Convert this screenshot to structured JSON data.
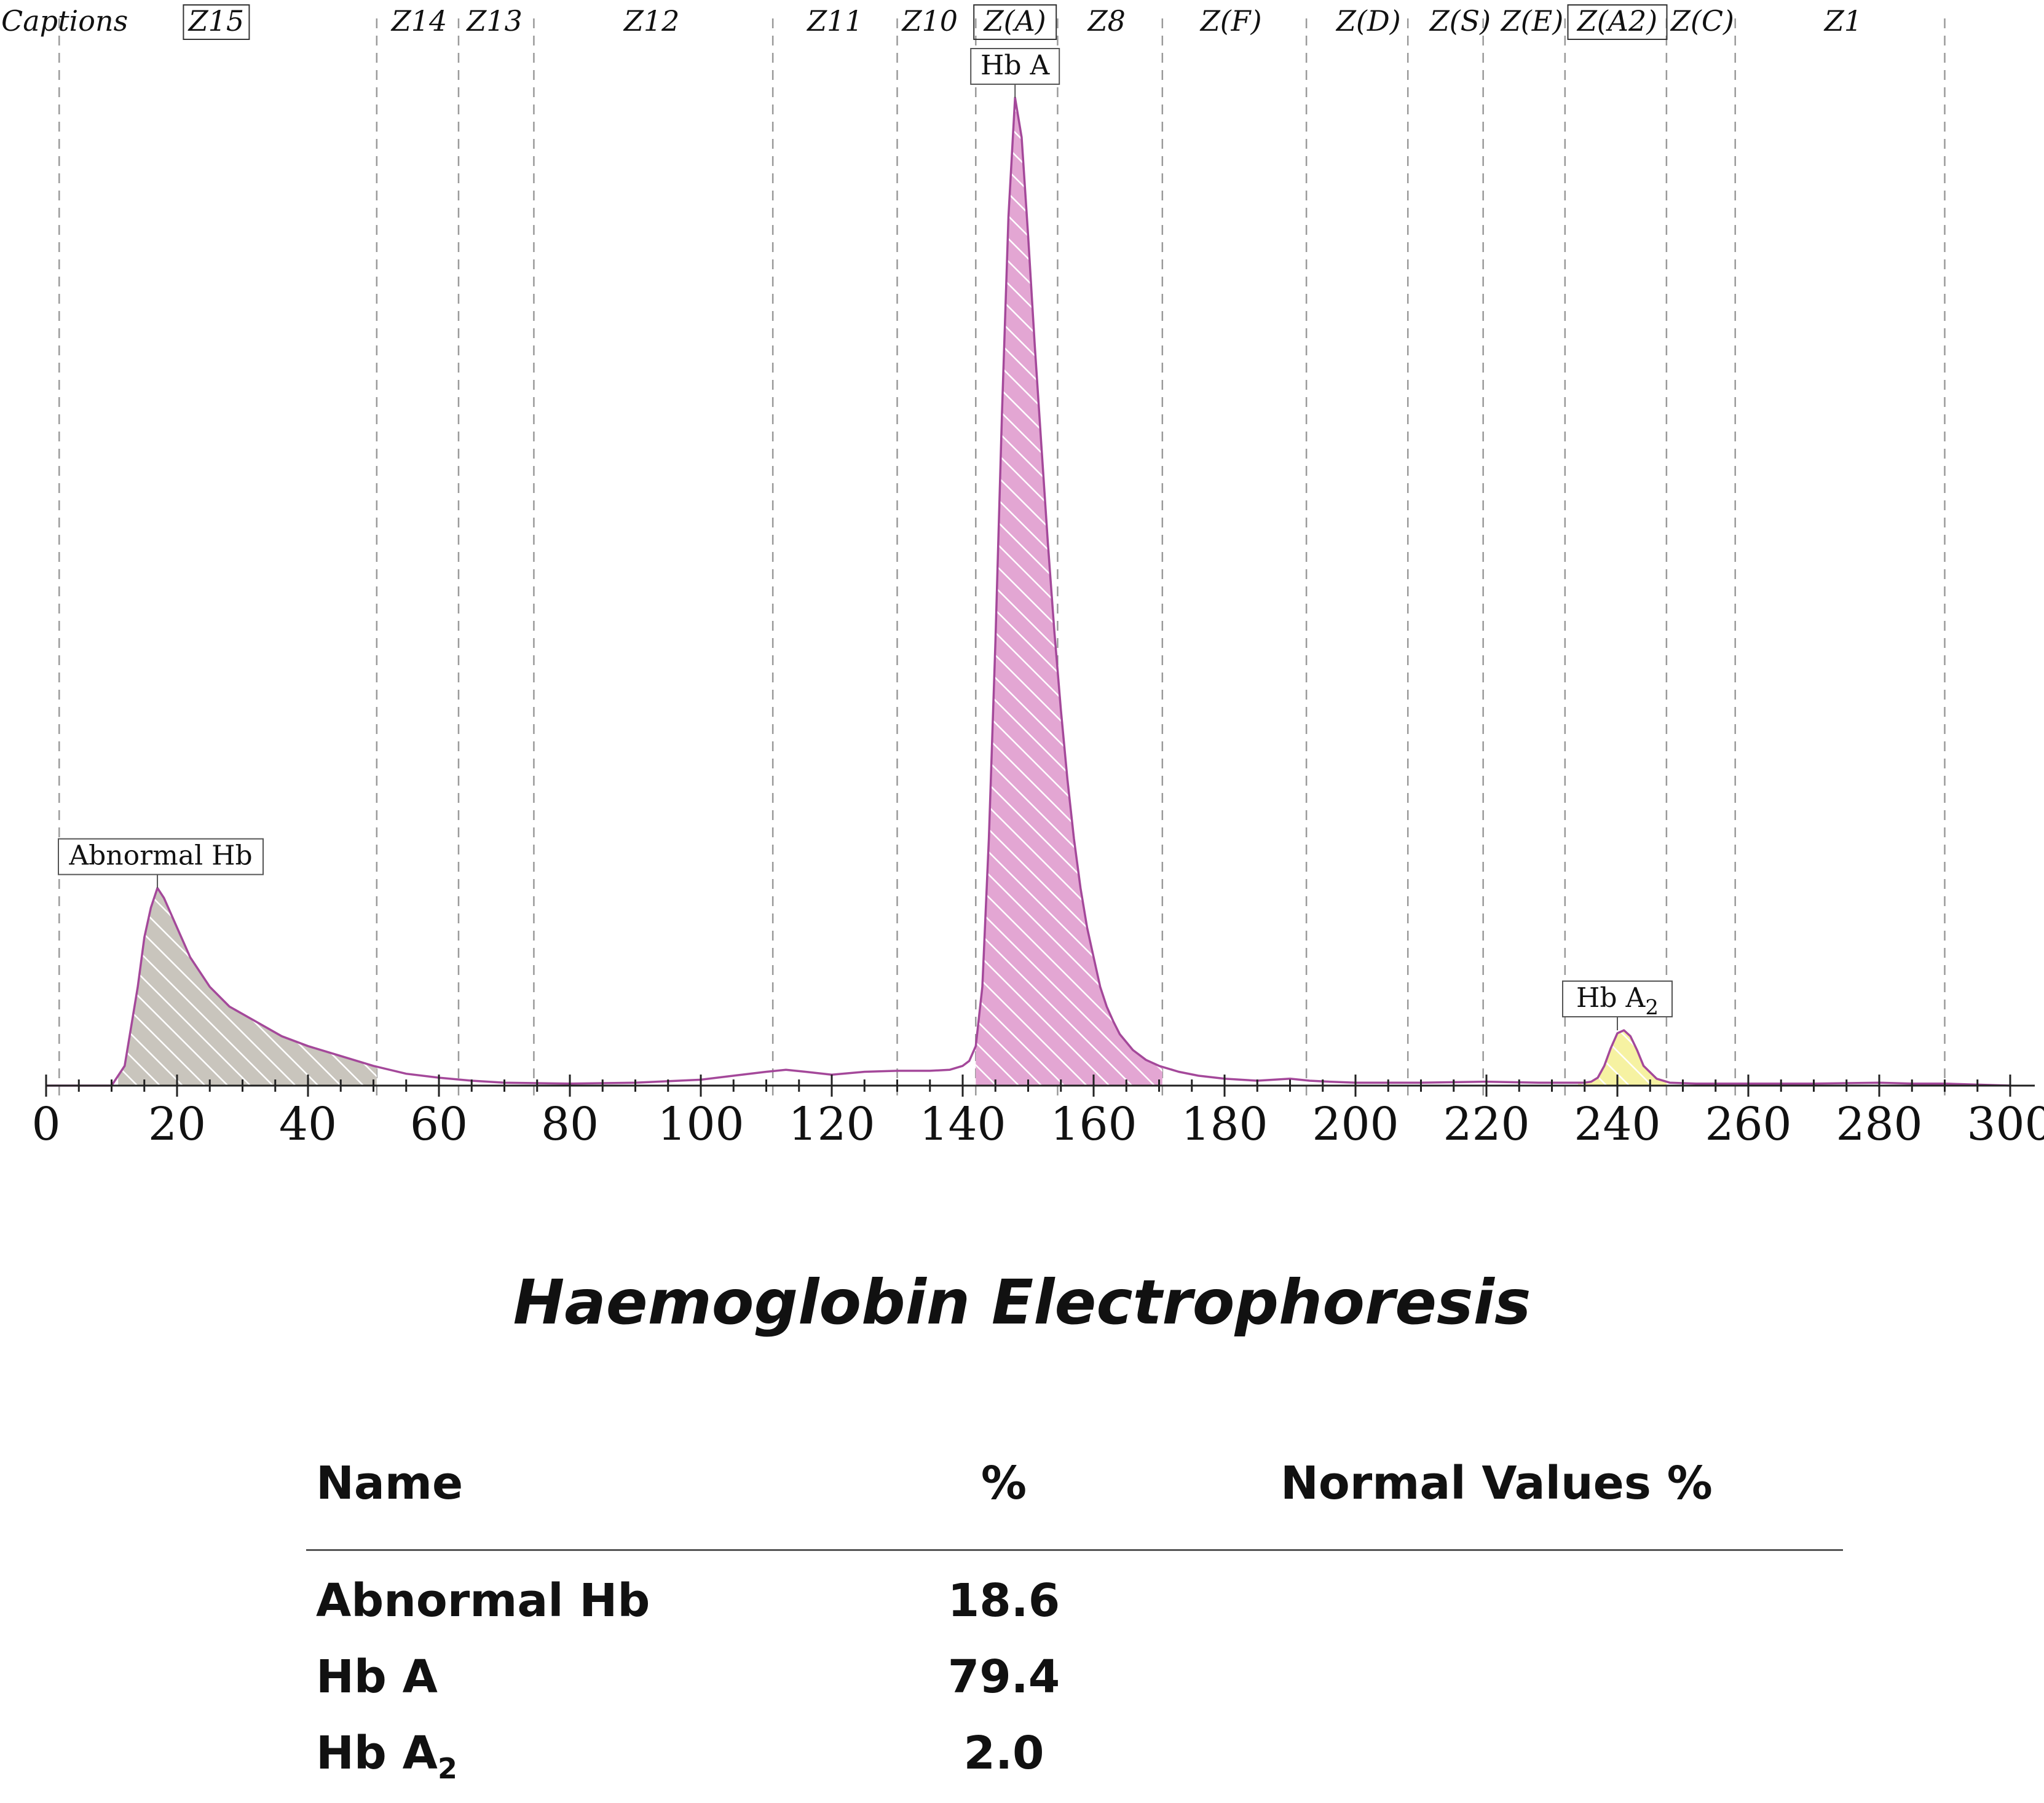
{
  "chart_data": {
    "type": "area",
    "title": "Haemoglobin Electrophoresis",
    "xlabel": "",
    "ylabel": "",
    "xlim": [
      0,
      300
    ],
    "ylim": [
      0,
      100
    ],
    "x_ticks": [
      0,
      20,
      40,
      60,
      80,
      100,
      120,
      140,
      160,
      180,
      200,
      220,
      240,
      260,
      280,
      300
    ],
    "caption_label": "Captions",
    "zones": [
      {
        "label": "Z15",
        "center": 26,
        "boxed": true
      },
      {
        "label": "Z14",
        "center": 57,
        "boxed": false
      },
      {
        "label": "Z13",
        "center": 68.5,
        "boxed": false
      },
      {
        "label": "Z12",
        "center": 92.5,
        "boxed": false
      },
      {
        "label": "Z11",
        "center": 120.5,
        "boxed": false
      },
      {
        "label": "Z10",
        "center": 135,
        "boxed": false
      },
      {
        "label": "Z(A)",
        "center": 148,
        "boxed": true
      },
      {
        "label": "Z8",
        "center": 162,
        "boxed": false
      },
      {
        "label": "Z(F)",
        "center": 181,
        "boxed": false
      },
      {
        "label": "Z(D)",
        "center": 202,
        "boxed": false
      },
      {
        "label": "Z(S)",
        "center": 216,
        "boxed": false
      },
      {
        "label": "Z(E)",
        "center": 227,
        "boxed": false
      },
      {
        "label": "Z(A2)",
        "center": 240,
        "boxed": true
      },
      {
        "label": "Z(C)",
        "center": 253,
        "boxed": false
      },
      {
        "label": "Z1",
        "center": 274.5,
        "boxed": false
      }
    ],
    "zone_boundaries": [
      2,
      50.5,
      63,
      74.5,
      111,
      130,
      142,
      154.5,
      170.5,
      192.5,
      208,
      219.5,
      232,
      247.5,
      258,
      290
    ],
    "curve": {
      "x": [
        0,
        10,
        12,
        14,
        15,
        16,
        17,
        18,
        20,
        22,
        25,
        28,
        32,
        36,
        40,
        45,
        50,
        55,
        60,
        65,
        70,
        80,
        90,
        100,
        105,
        110,
        113,
        116,
        120,
        125,
        130,
        135,
        138,
        140,
        141,
        142,
        143,
        144,
        145,
        146,
        147,
        148,
        149,
        150,
        151,
        152,
        153,
        154,
        155,
        156,
        157,
        158,
        159,
        160,
        161,
        162,
        163,
        164,
        166,
        168,
        170,
        173,
        176,
        180,
        185,
        190,
        193,
        196,
        200,
        210,
        220,
        228,
        233,
        235,
        236,
        237,
        238,
        239,
        240,
        241,
        242,
        243,
        244,
        246,
        248,
        252,
        260,
        270,
        280,
        285,
        290,
        295,
        300
      ],
      "y": [
        0,
        0,
        2,
        10,
        15,
        18,
        20,
        19,
        16,
        13,
        10,
        8,
        6.5,
        5,
        4,
        3,
        2,
        1.2,
        0.8,
        0.5,
        0.3,
        0.2,
        0.3,
        0.6,
        1.0,
        1.4,
        1.6,
        1.4,
        1.1,
        1.4,
        1.5,
        1.5,
        1.6,
        2.0,
        2.5,
        4,
        10,
        25,
        45,
        68,
        88,
        100,
        96,
        86,
        75,
        65,
        55,
        46,
        38,
        31,
        25,
        20,
        16,
        13,
        10,
        8,
        6.5,
        5.2,
        3.6,
        2.6,
        2.0,
        1.4,
        1.0,
        0.7,
        0.5,
        0.7,
        0.5,
        0.4,
        0.3,
        0.3,
        0.4,
        0.3,
        0.3,
        0.3,
        0.4,
        0.8,
        2.0,
        3.8,
        5.3,
        5.6,
        5.0,
        3.6,
        2.0,
        0.7,
        0.3,
        0.2,
        0.2,
        0.2,
        0.3,
        0.2,
        0.2,
        0.1,
        0
      ]
    },
    "peaks": [
      {
        "label": "Abnormal Hb",
        "x_start": 11,
        "x_end": 50.5,
        "apex_x": 17,
        "apex_y": 20,
        "fill": "#c9c5bd",
        "hatch": "#ffffff"
      },
      {
        "label_main": "Hb A",
        "label": "Hb A",
        "x_start": 142,
        "x_end": 170.5,
        "apex_x": 148,
        "apex_y": 100,
        "fill": "#e3a6d3",
        "hatch": "#ffffff"
      },
      {
        "label_main": "Hb A",
        "label_sub": "2",
        "label": "Hb A2",
        "x_start": 234,
        "x_end": 247.5,
        "apex_x": 240,
        "apex_y": 5.6,
        "fill": "#f6f2a2",
        "hatch": "#ffffff"
      }
    ],
    "line_color": "#a4489a"
  },
  "results": {
    "headers": {
      "name": "Name",
      "pct": "%",
      "normal": "Normal Values %"
    },
    "rows": [
      {
        "name": "Abnormal Hb",
        "pct": "18.6",
        "normal": ""
      },
      {
        "name_main": "Hb A",
        "name_sub": "",
        "pct": "79.4",
        "normal": ""
      },
      {
        "name_main": "Hb A",
        "name_sub": "2",
        "pct": "2.0",
        "normal": ""
      }
    ]
  }
}
